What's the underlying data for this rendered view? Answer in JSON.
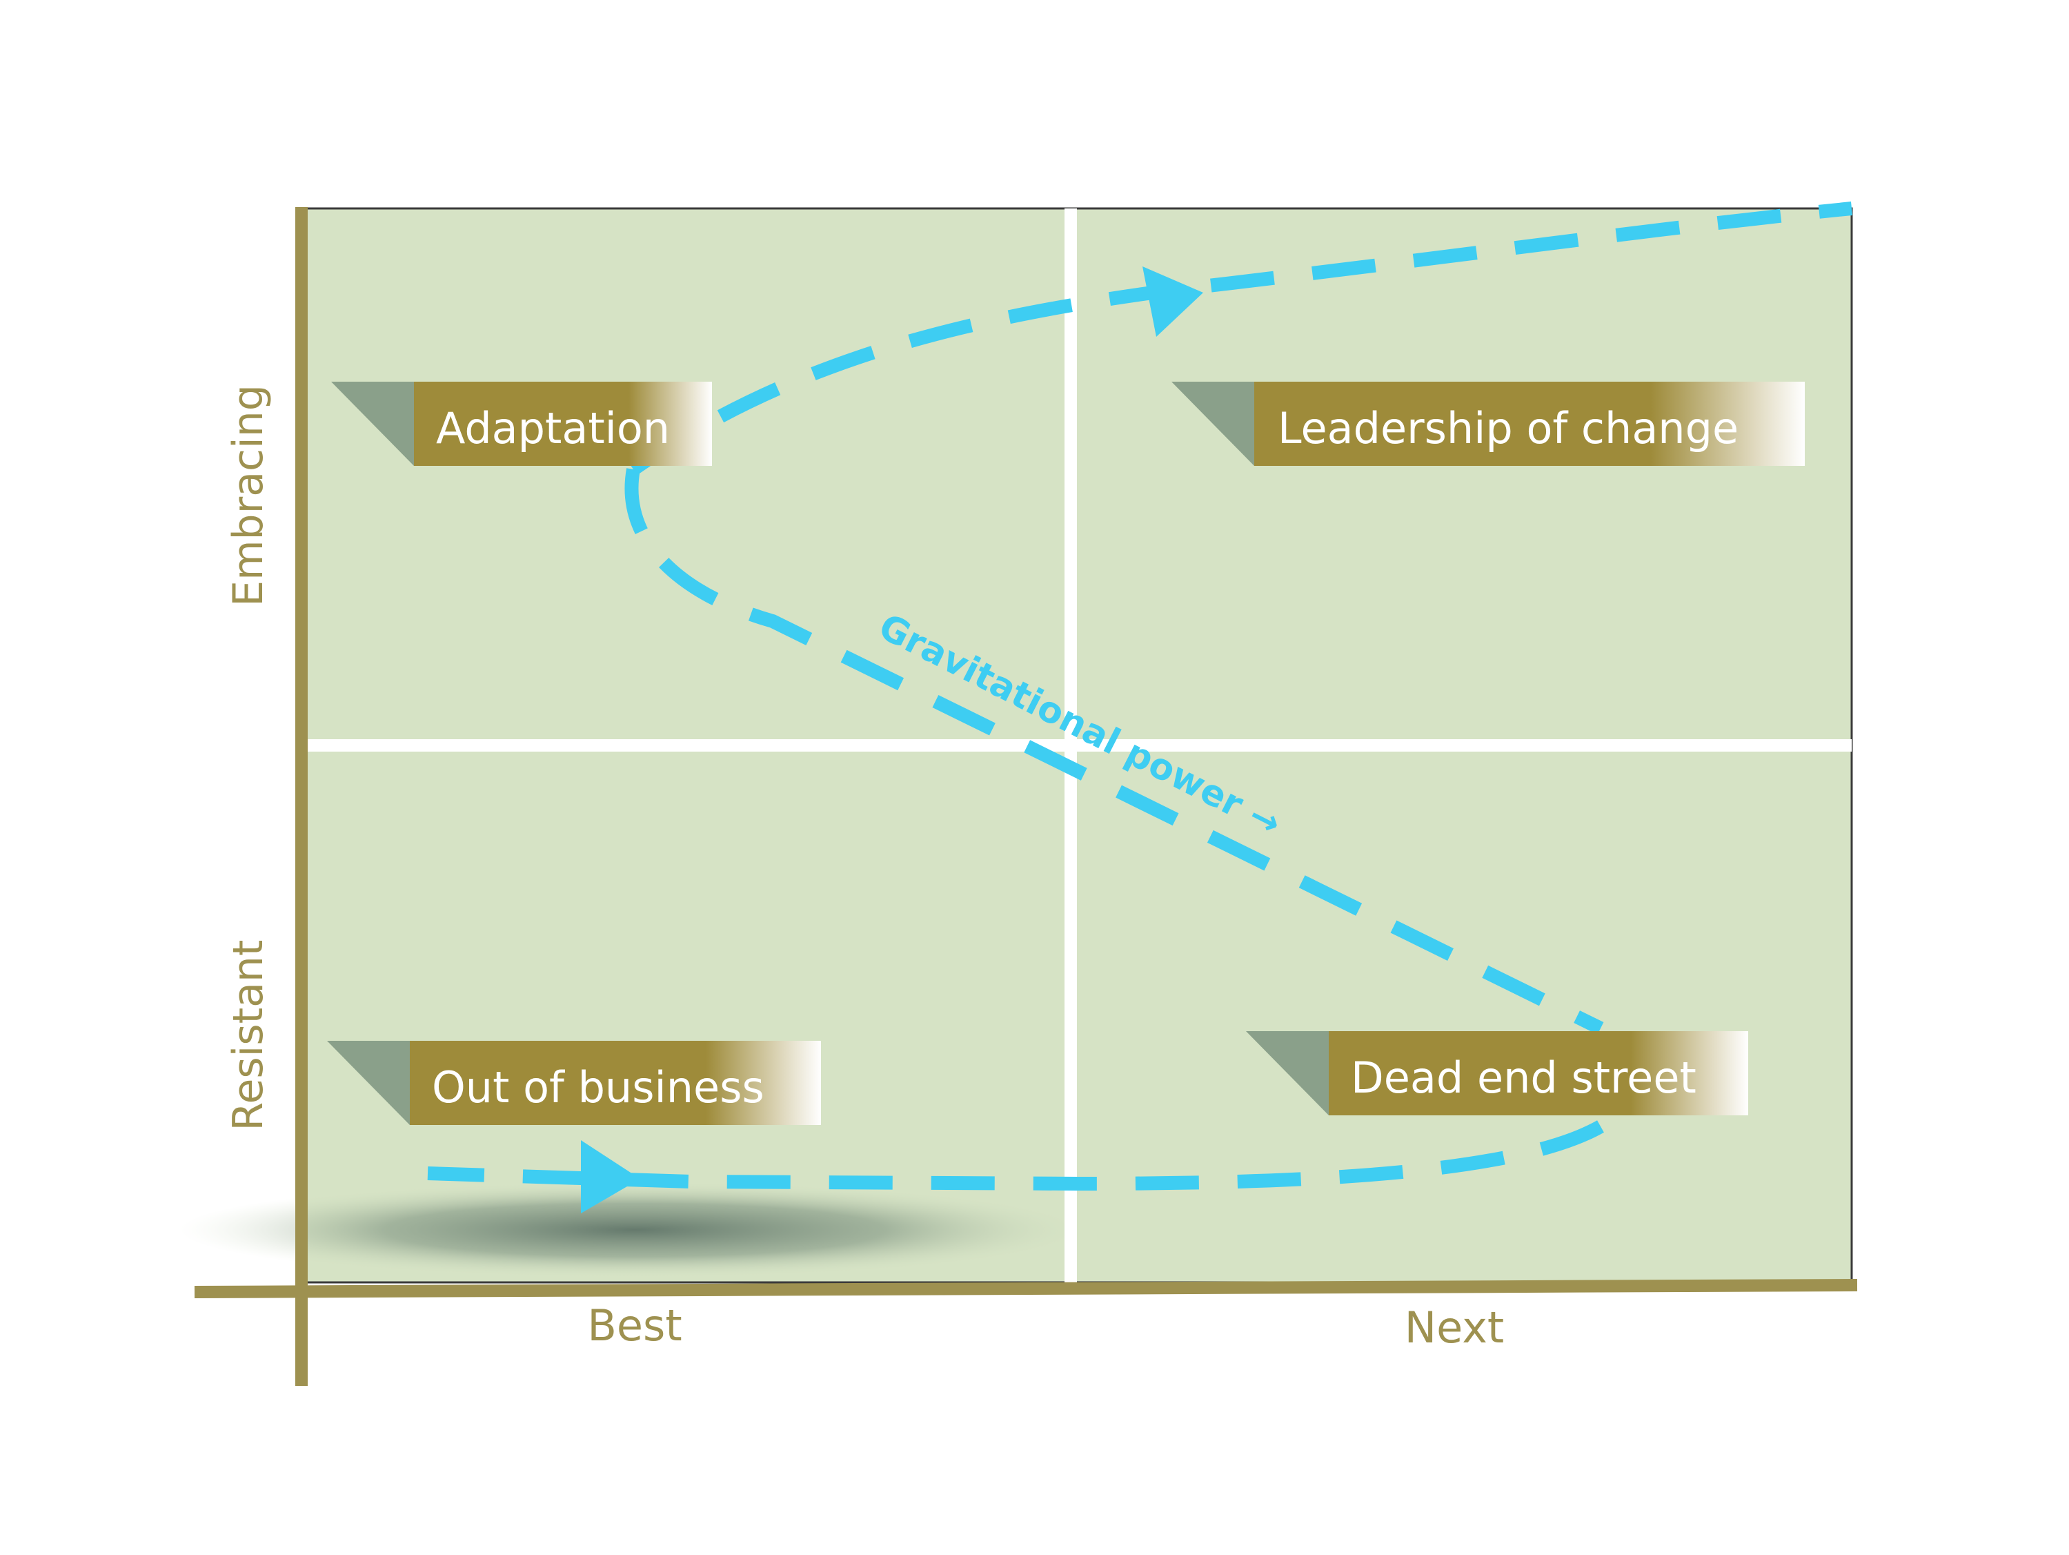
{
  "colors": {
    "background": "#ffffff",
    "quadrant_fill": "#d6e3c5",
    "axis": "#9e9150",
    "label_gold": "#9e8b3a",
    "label_tab": "#8aa08a",
    "divider": "#ffffff",
    "path": "#3ecdf2",
    "axis_text": "#9e9150",
    "label_text": "#ffffff"
  },
  "axes": {
    "y_top_label": "Embracing",
    "y_bottom_label": "Resistant",
    "x_left_label": "Best",
    "x_right_label": "Next"
  },
  "quadrants": {
    "top_left": "Adaptation",
    "top_right": "Leadership of change",
    "bottom_left": "Out of business",
    "bottom_right": "Dead end street"
  },
  "path_label": "Gravitational power →"
}
